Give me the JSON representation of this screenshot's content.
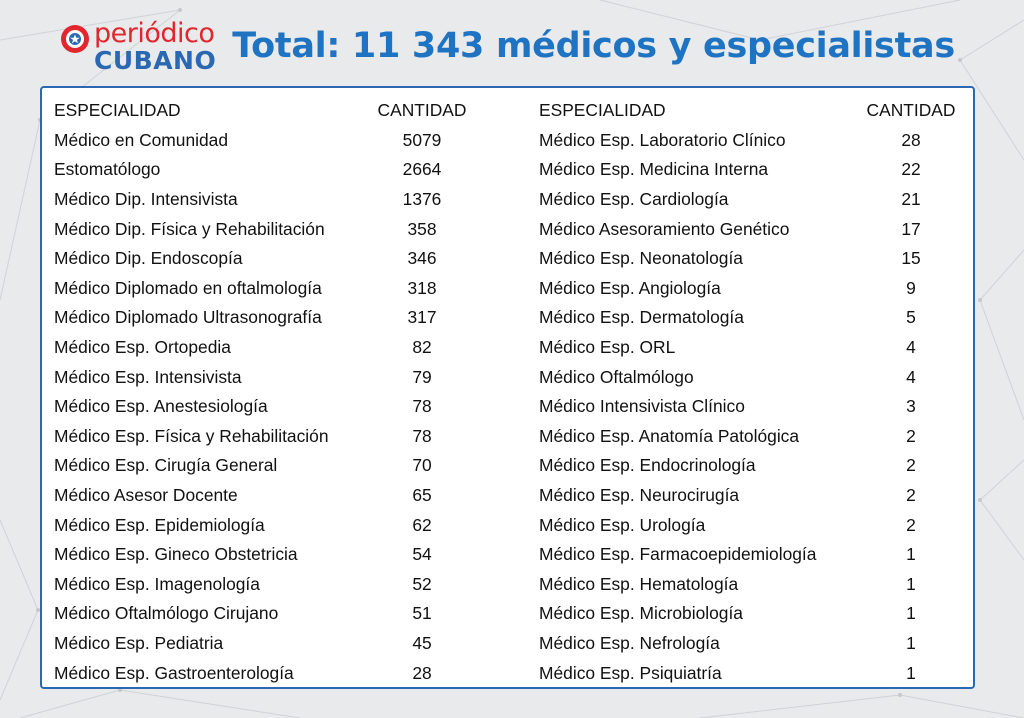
{
  "logo": {
    "top": "periódico",
    "bottom": "CUBANO"
  },
  "title": "Total: 11 343 médicos y especialistas",
  "colors": {
    "title": "#1e73c2",
    "logo_red": "#e2262e",
    "logo_blue": "#2a68b2",
    "border": "#2a68b2"
  },
  "headers": {
    "specialty": "ESPECIALIDAD",
    "quantity": "CANTIDAD"
  },
  "left_rows": [
    {
      "name": "Médico en Comunidad",
      "qty": "5079"
    },
    {
      "name": "Estomatólogo",
      "qty": "2664"
    },
    {
      "name": "Médico Dip. Intensivista",
      "qty": "1376"
    },
    {
      "name": "Médico Dip. Física y Rehabilitación",
      "qty": "358"
    },
    {
      "name": "Médico Dip. Endoscopía",
      "qty": "346"
    },
    {
      "name": "Médico Diplomado en oftalmología",
      "qty": "318"
    },
    {
      "name": "Médico Diplomado Ultrasonografía",
      "qty": "317"
    },
    {
      "name": "Médico Esp. Ortopedia",
      "qty": "82"
    },
    {
      "name": "Médico Esp. Intensivista",
      "qty": "79"
    },
    {
      "name": "Médico Esp. Anestesiología",
      "qty": "78"
    },
    {
      "name": "Médico Esp. Física y Rehabilitación",
      "qty": "78"
    },
    {
      "name": "Médico Esp. Cirugía General",
      "qty": "70"
    },
    {
      "name": "Médico Asesor Docente",
      "qty": "65"
    },
    {
      "name": "Médico Esp. Epidemiología",
      "qty": "62"
    },
    {
      "name": "Médico Esp. Gineco Obstetricia",
      "qty": "54"
    },
    {
      "name": "Médico Esp. Imagenología",
      "qty": "52"
    },
    {
      "name": "Médico Oftalmólogo Cirujano",
      "qty": "51"
    },
    {
      "name": "Médico Esp. Pediatria",
      "qty": "45"
    },
    {
      "name": "Médico Esp. Gastroenterología",
      "qty": "28"
    }
  ],
  "right_rows": [
    {
      "name": "Médico Esp. Laboratorio Clínico",
      "qty": "28"
    },
    {
      "name": "Médico Esp. Medicina Interna",
      "qty": "22"
    },
    {
      "name": "Médico Esp. Cardiología",
      "qty": "21"
    },
    {
      "name": "Médico Asesoramiento Genético",
      "qty": "17"
    },
    {
      "name": "Médico Esp. Neonatología",
      "qty": "15"
    },
    {
      "name": "Médico Esp. Angiología",
      "qty": "9"
    },
    {
      "name": "Médico Esp. Dermatología",
      "qty": "5"
    },
    {
      "name": "Médico Esp. ORL",
      "qty": "4"
    },
    {
      "name": "Médico Oftalmólogo",
      "qty": "4"
    },
    {
      "name": "Médico Intensivista Clínico",
      "qty": "3"
    },
    {
      "name": "Médico Esp. Anatomía Patológica",
      "qty": "2"
    },
    {
      "name": "Médico Esp. Endocrinología",
      "qty": "2"
    },
    {
      "name": "Médico Esp. Neurocirugía",
      "qty": "2"
    },
    {
      "name": "Médico Esp. Urología",
      "qty": "2"
    },
    {
      "name": "Médico Esp. Farmacoepidemiología",
      "qty": "1"
    },
    {
      "name": "Médico Esp. Hematología",
      "qty": "1"
    },
    {
      "name": "Médico Esp. Microbiología",
      "qty": "1"
    },
    {
      "name": "Médico Esp. Nefrología",
      "qty": "1"
    },
    {
      "name": "Médico Esp. Psiquiatría",
      "qty": "1"
    }
  ]
}
